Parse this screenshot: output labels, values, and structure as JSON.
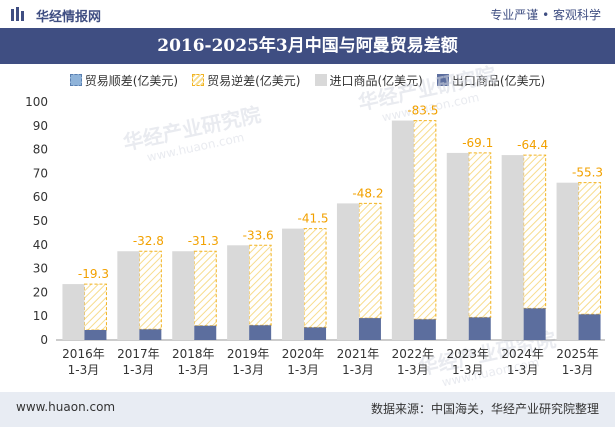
{
  "header": {
    "brand": "华经情报网",
    "tagline": "专业严谨 • 客观科学"
  },
  "footer": {
    "url": "www.huaon.com",
    "source": "数据来源：中国海关，华经产业研究院整理"
  },
  "watermark": {
    "text": "华经产业研究院",
    "url": "www.huaon.com"
  },
  "colors": {
    "title_bg": "#3f4e82",
    "import": "#d9d9d9",
    "export": "#5c6e9e",
    "deficit_border": "#f2b322",
    "deficit_label": "#f2a100"
  },
  "chart_data": {
    "type": "bar",
    "title": "2016-2025年3月中国与阿曼贸易差额",
    "xlabel": "",
    "ylabel": "",
    "ylim": [
      0,
      100
    ],
    "yticks": [
      0,
      10,
      20,
      30,
      40,
      50,
      60,
      70,
      80,
      90,
      100
    ],
    "categories": [
      [
        "2016年",
        "1-3月"
      ],
      [
        "2017年",
        "1-3月"
      ],
      [
        "2018年",
        "1-3月"
      ],
      [
        "2019年",
        "1-3月"
      ],
      [
        "2020年",
        "1-3月"
      ],
      [
        "2021年",
        "1-3月"
      ],
      [
        "2022年",
        "1-3月"
      ],
      [
        "2023年",
        "1-3月"
      ],
      [
        "2024年",
        "1-3月"
      ],
      [
        "2025年",
        "1-3月"
      ]
    ],
    "legend": [
      "贸易顺差(亿美元)",
      "贸易逆差(亿美元)",
      "进口商品(亿美元)",
      "出口商品(亿美元)"
    ],
    "series": [
      {
        "name": "进口商品(亿美元)",
        "values": [
          23.5,
          37.3,
          37.3,
          39.8,
          46.8,
          57.4,
          92.2,
          78.6,
          77.7,
          66.1
        ]
      },
      {
        "name": "出口商品(亿美元)",
        "values": [
          4.2,
          4.5,
          6.0,
          6.2,
          5.3,
          9.2,
          8.7,
          9.5,
          13.3,
          10.8
        ]
      },
      {
        "name": "贸易逆差(亿美元)",
        "values": [
          -19.3,
          -32.8,
          -31.3,
          -33.6,
          -41.5,
          -48.2,
          -83.5,
          -69.1,
          -64.4,
          -55.3
        ]
      }
    ]
  }
}
